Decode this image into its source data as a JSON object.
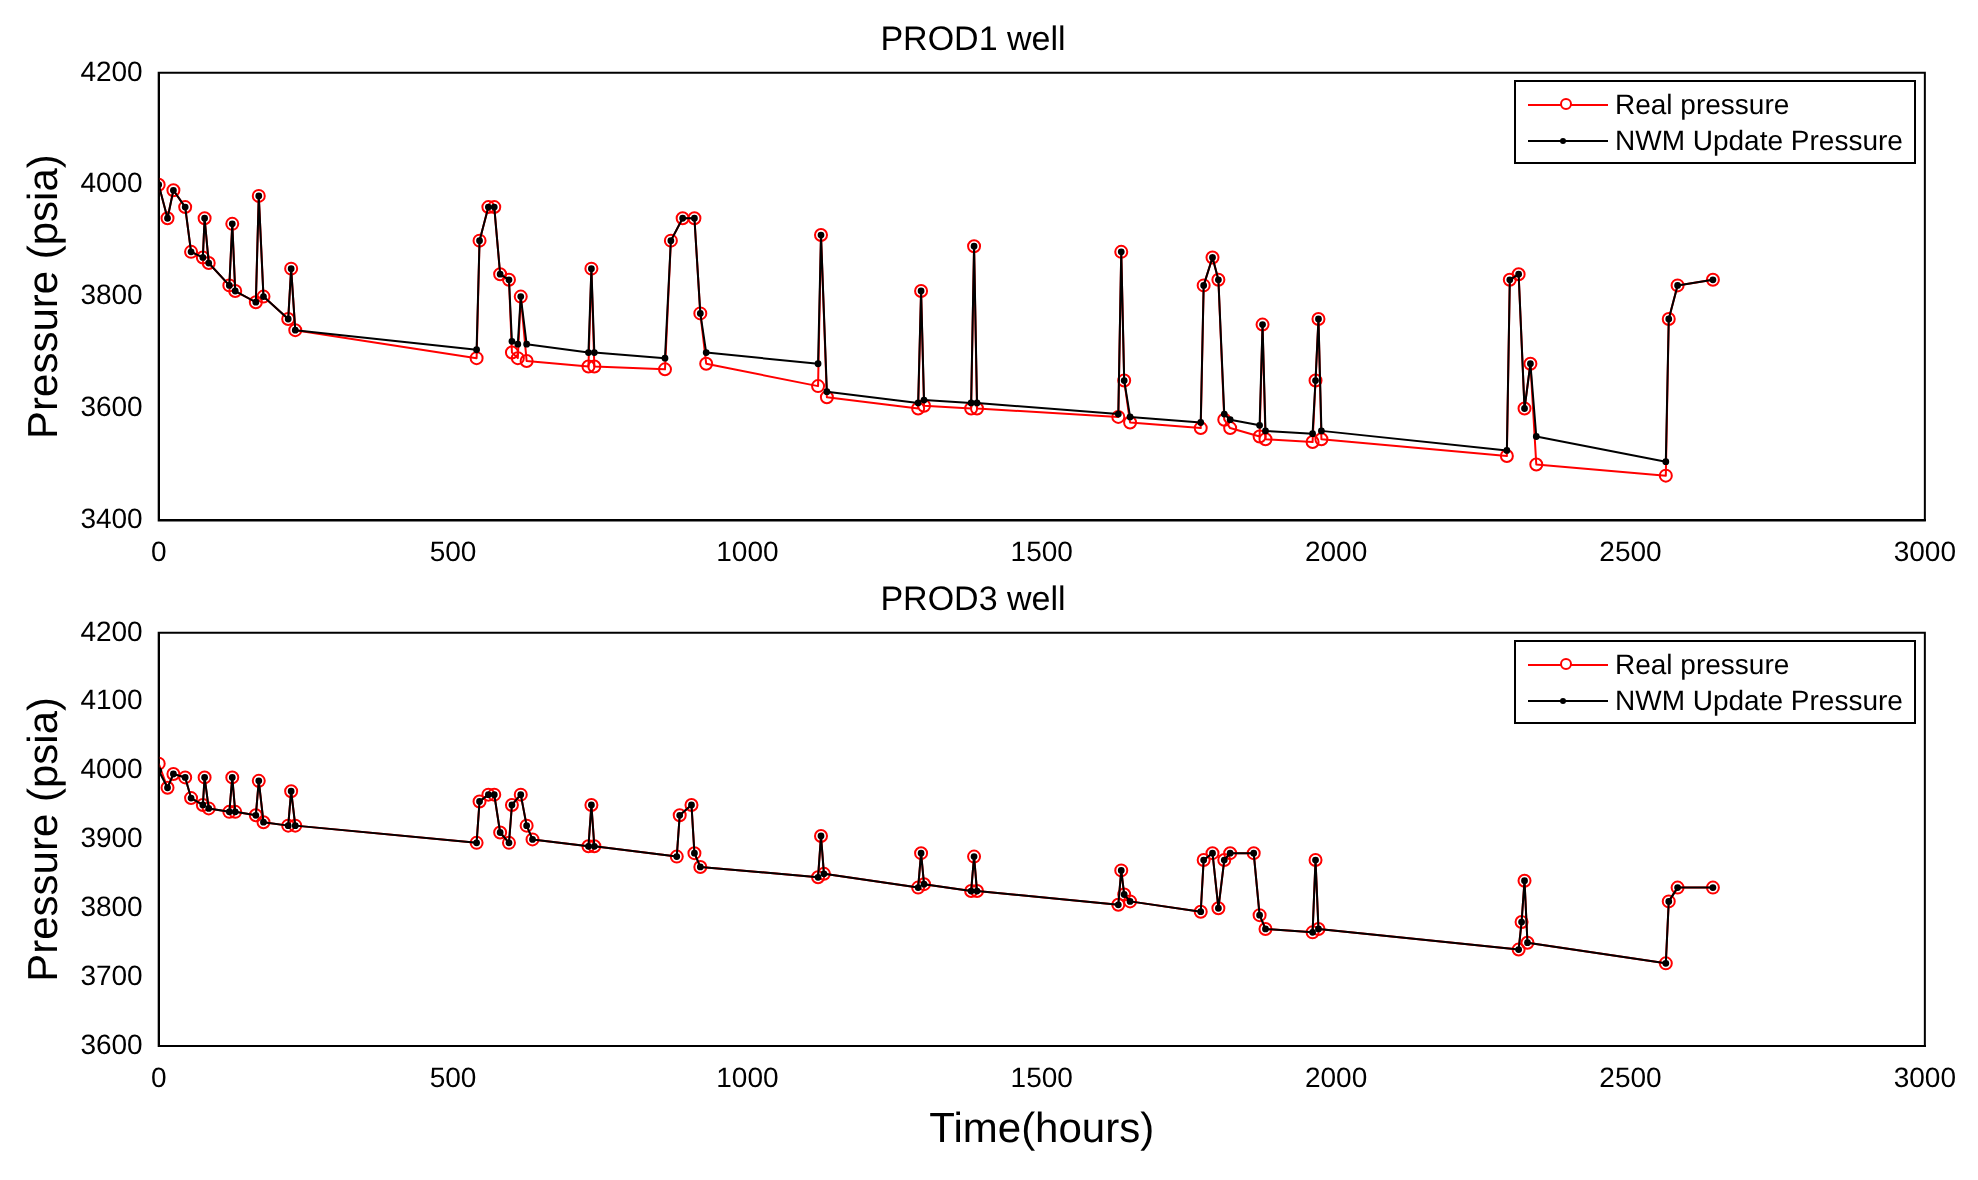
{
  "chart_data": [
    {
      "type": "line",
      "title": "PROD1 well",
      "ylabel": "Pressure (psia)",
      "xlim": [
        0,
        3000
      ],
      "xticks": [
        0,
        500,
        1000,
        1500,
        2000,
        2500,
        3000
      ],
      "ylim": [
        3400,
        4200
      ],
      "yticks": [
        3400,
        3600,
        3800,
        4000,
        4200
      ],
      "grid": false,
      "legend": "top right",
      "marker": "circle",
      "line_style": "solid",
      "series": [
        {
          "name": "Real pressure",
          "color": "#ff0000",
          "x": [
            0,
            15,
            25,
            45,
            55,
            75,
            78,
            85,
            120,
            125,
            130,
            165,
            170,
            178,
            220,
            225,
            232,
            540,
            545,
            560,
            570,
            580,
            595,
            600,
            610,
            615,
            625,
            730,
            735,
            740,
            860,
            870,
            890,
            910,
            920,
            930,
            1120,
            1125,
            1135,
            1290,
            1295,
            1300,
            1380,
            1385,
            1390,
            1630,
            1635,
            1640,
            1650,
            1770,
            1775,
            1790,
            1800,
            1810,
            1820,
            1870,
            1875,
            1880,
            1960,
            1965,
            1970,
            1975,
            2290,
            2295,
            2310,
            2320,
            2330,
            2340,
            2560,
            2565,
            2580,
            2640
          ],
          "values": [
            4000,
            3940,
            3990,
            3960,
            3880,
            3870,
            3940,
            3860,
            3820,
            3930,
            3810,
            3790,
            3980,
            3800,
            3760,
            3850,
            3740,
            3690,
            3900,
            3960,
            3960,
            3840,
            3830,
            3700,
            3690,
            3800,
            3685,
            3675,
            3850,
            3675,
            3670,
            3900,
            3940,
            3940,
            3770,
            3680,
            3640,
            3910,
            3620,
            3600,
            3810,
            3605,
            3600,
            3890,
            3600,
            3585,
            3880,
            3650,
            3575,
            3565,
            3820,
            3870,
            3830,
            3580,
            3565,
            3550,
            3750,
            3545,
            3540,
            3650,
            3760,
            3545,
            3515,
            3830,
            3840,
            3600,
            3680,
            3500,
            3480,
            3760,
            3820,
            3830
          ]
        },
        {
          "name": "NWM Update Pressure",
          "color": "#000000",
          "x": [
            0,
            15,
            25,
            45,
            55,
            75,
            78,
            85,
            120,
            125,
            130,
            165,
            170,
            178,
            220,
            225,
            232,
            540,
            545,
            560,
            570,
            580,
            595,
            600,
            610,
            615,
            625,
            730,
            735,
            740,
            860,
            870,
            890,
            910,
            920,
            930,
            1120,
            1125,
            1135,
            1290,
            1295,
            1300,
            1380,
            1385,
            1390,
            1630,
            1635,
            1640,
            1650,
            1770,
            1775,
            1790,
            1800,
            1810,
            1820,
            1870,
            1875,
            1880,
            1960,
            1965,
            1970,
            1975,
            2290,
            2295,
            2310,
            2320,
            2330,
            2340,
            2560,
            2565,
            2580,
            2640
          ],
          "values": [
            4000,
            3940,
            3990,
            3960,
            3880,
            3870,
            3940,
            3860,
            3820,
            3930,
            3810,
            3790,
            3980,
            3800,
            3760,
            3850,
            3740,
            3705,
            3900,
            3960,
            3960,
            3840,
            3830,
            3720,
            3715,
            3800,
            3715,
            3700,
            3850,
            3700,
            3690,
            3900,
            3940,
            3940,
            3770,
            3700,
            3680,
            3910,
            3630,
            3610,
            3810,
            3615,
            3610,
            3890,
            3610,
            3590,
            3880,
            3650,
            3585,
            3575,
            3820,
            3870,
            3830,
            3590,
            3580,
            3570,
            3750,
            3560,
            3555,
            3650,
            3760,
            3560,
            3525,
            3830,
            3840,
            3600,
            3680,
            3550,
            3505,
            3760,
            3820,
            3830
          ]
        }
      ]
    },
    {
      "type": "line",
      "title": "PROD3 well",
      "xlabel": "Time(hours)",
      "ylabel": "Pressure (psia)",
      "xlim": [
        0,
        3000
      ],
      "xticks": [
        0,
        500,
        1000,
        1500,
        2000,
        2500,
        3000
      ],
      "ylim": [
        3600,
        4200
      ],
      "yticks": [
        3600,
        3700,
        3800,
        3900,
        4000,
        4100,
        4200
      ],
      "grid": false,
      "legend": "top right",
      "marker": "circle",
      "line_style": "solid",
      "series": [
        {
          "name": "Real pressure",
          "color": "#ff0000",
          "x": [
            0,
            15,
            25,
            45,
            55,
            75,
            78,
            85,
            120,
            125,
            130,
            165,
            170,
            178,
            220,
            225,
            232,
            540,
            545,
            560,
            570,
            580,
            595,
            600,
            615,
            625,
            635,
            730,
            735,
            740,
            880,
            885,
            905,
            910,
            920,
            1120,
            1125,
            1130,
            1290,
            1295,
            1300,
            1380,
            1385,
            1390,
            1630,
            1635,
            1640,
            1650,
            1770,
            1775,
            1790,
            1800,
            1810,
            1820,
            1860,
            1870,
            1880,
            1960,
            1965,
            1970,
            2310,
            2315,
            2320,
            2325,
            2560,
            2565,
            2580,
            2640
          ],
          "values": [
            4010,
            3975,
            3995,
            3990,
            3960,
            3950,
            3990,
            3945,
            3940,
            3990,
            3940,
            3935,
            3985,
            3925,
            3920,
            3970,
            3920,
            3895,
            3955,
            3965,
            3965,
            3910,
            3895,
            3950,
            3965,
            3920,
            3900,
            3890,
            3950,
            3890,
            3875,
            3935,
            3950,
            3880,
            3860,
            3845,
            3905,
            3850,
            3830,
            3880,
            3835,
            3825,
            3875,
            3825,
            3805,
            3855,
            3820,
            3810,
            3795,
            3870,
            3880,
            3800,
            3870,
            3880,
            3880,
            3790,
            3770,
            3765,
            3870,
            3770,
            3740,
            3780,
            3840,
            3750,
            3720,
            3810,
            3830,
            3830
          ]
        },
        {
          "name": "NWM Update Pressure",
          "color": "#000000",
          "x": [
            0,
            15,
            25,
            45,
            55,
            75,
            78,
            85,
            120,
            125,
            130,
            165,
            170,
            178,
            220,
            225,
            232,
            540,
            545,
            560,
            570,
            580,
            595,
            600,
            615,
            625,
            635,
            730,
            735,
            740,
            880,
            885,
            905,
            910,
            920,
            1120,
            1125,
            1130,
            1290,
            1295,
            1300,
            1380,
            1385,
            1390,
            1630,
            1635,
            1640,
            1650,
            1770,
            1775,
            1790,
            1800,
            1810,
            1820,
            1860,
            1870,
            1880,
            1960,
            1965,
            1970,
            2310,
            2315,
            2320,
            2325,
            2560,
            2565,
            2580,
            2640
          ],
          "values": [
            4000,
            3975,
            3995,
            3990,
            3960,
            3950,
            3990,
            3945,
            3940,
            3990,
            3940,
            3935,
            3985,
            3925,
            3920,
            3970,
            3920,
            3895,
            3955,
            3965,
            3965,
            3910,
            3895,
            3950,
            3965,
            3920,
            3900,
            3890,
            3950,
            3890,
            3875,
            3935,
            3950,
            3880,
            3860,
            3845,
            3905,
            3850,
            3830,
            3880,
            3835,
            3825,
            3875,
            3825,
            3805,
            3855,
            3820,
            3810,
            3795,
            3870,
            3880,
            3800,
            3870,
            3880,
            3880,
            3790,
            3770,
            3765,
            3870,
            3770,
            3740,
            3780,
            3840,
            3750,
            3720,
            3810,
            3830,
            3830
          ]
        }
      ]
    }
  ]
}
